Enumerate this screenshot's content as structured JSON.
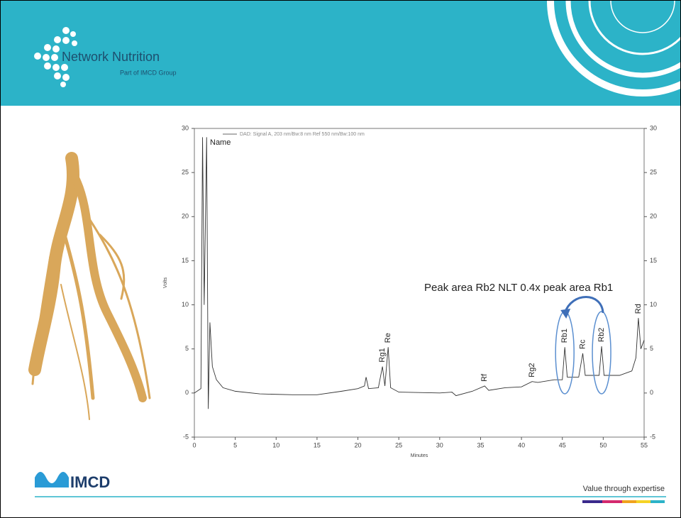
{
  "header": {
    "brand": "Network Nutrition",
    "tagline": "Part of IMCD Group"
  },
  "footer": {
    "logo": "IMCD",
    "slogan": "Value through expertise"
  },
  "chart_data": {
    "type": "line",
    "corner_label": "Name",
    "x_label": "Minutes",
    "y_label": "Volts",
    "xlim": [
      0,
      55
    ],
    "ylim": [
      -5,
      30
    ],
    "xticks": [
      0,
      5,
      10,
      15,
      20,
      25,
      30,
      35,
      40,
      45,
      50,
      55
    ],
    "yticks": [
      -5,
      0,
      5,
      10,
      15,
      20,
      25,
      30
    ],
    "series": [
      {
        "name": "DAD: Signal A, 203 nm/Bw:8 nm Ref 550 nm/Bw:100 nm",
        "color": "#333333",
        "x": [
          0,
          0.8,
          1.0,
          1.2,
          1.5,
          1.7,
          1.9,
          2.2,
          2.7,
          3.5,
          5,
          8,
          12,
          15,
          18,
          20,
          20.8,
          21,
          21.3,
          22.5,
          23.0,
          23.3,
          23.7,
          24.0,
          25,
          30,
          31.5,
          32,
          34,
          35.5,
          36,
          38,
          40,
          41.3,
          42,
          44,
          45.0,
          45.3,
          45.6,
          47,
          47.5,
          47.8,
          49.5,
          49.8,
          50.1,
          52,
          53.5,
          54,
          54.3,
          54.6,
          55
        ],
        "values": [
          0,
          0.5,
          29,
          10,
          29,
          -1.8,
          8,
          3,
          1.5,
          0.6,
          0.2,
          -0.1,
          -0.2,
          -0.2,
          0.2,
          0.5,
          0.8,
          1.8,
          0.5,
          0.6,
          3,
          0.8,
          5.2,
          0.6,
          0.1,
          0,
          0.1,
          -0.3,
          0.2,
          0.8,
          0.3,
          0.6,
          0.7,
          1.3,
          1.2,
          1.5,
          1.5,
          5.2,
          1.8,
          1.8,
          4.5,
          2,
          2,
          5.3,
          2,
          2,
          2.5,
          4,
          8.5,
          5,
          6
        ]
      }
    ],
    "peaks": [
      {
        "text": "Rg1",
        "x": 23.0
      },
      {
        "text": "Re",
        "x": 23.7
      },
      {
        "text": "Rf",
        "x": 35.5
      },
      {
        "text": "Rg2",
        "x": 41.3
      },
      {
        "text": "Rb1",
        "x": 45.3
      },
      {
        "text": "Rc",
        "x": 47.5
      },
      {
        "text": "Rb2",
        "x": 49.8
      },
      {
        "text": "Rd",
        "x": 54.3
      }
    ],
    "annotation": "Peak area Rb2 NLT 0.4x peak area Rb1"
  }
}
